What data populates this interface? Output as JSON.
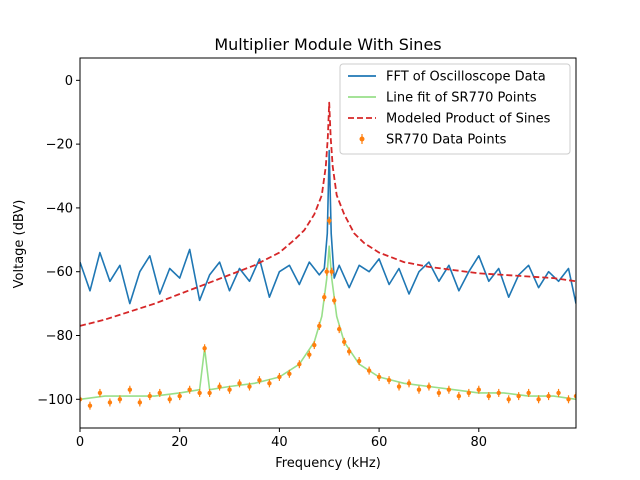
{
  "chart_data": {
    "type": "line",
    "title": "Multiplier Module With Sines",
    "xlabel": "Frequency (kHz)",
    "ylabel": "Voltage (dBV)",
    "xlim": [
      0,
      99.5
    ],
    "ylim": [
      -109,
      7
    ],
    "x_ticks": [
      0,
      20,
      40,
      60,
      80
    ],
    "y_ticks": [
      0,
      -20,
      -40,
      -60,
      -80,
      -100
    ],
    "x_tick_labels": [
      "0",
      "20",
      "40",
      "60",
      "80"
    ],
    "y_tick_labels": [
      "0",
      "−20",
      "−40",
      "−60",
      "−80",
      "−100"
    ],
    "grid": false,
    "legend_position": "top-right",
    "series": [
      {
        "name": "FFT of Oscilloscope Data",
        "style": "solid",
        "color": "#1f77b4",
        "description": "noisy floor around -60 dBV with spike at 50 kHz",
        "x": [
          0,
          2,
          4,
          6,
          8,
          10,
          12,
          14,
          16,
          18,
          20,
          22,
          24,
          26,
          28,
          30,
          32,
          34,
          36,
          38,
          40,
          42,
          44,
          46,
          48,
          49,
          49.6,
          50,
          50.4,
          51,
          52,
          54,
          56,
          58,
          60,
          62,
          64,
          66,
          68,
          70,
          72,
          74,
          76,
          78,
          80,
          82,
          84,
          86,
          88,
          90,
          92,
          94,
          96,
          98,
          99.5
        ],
        "y": [
          -57,
          -66,
          -54,
          -63,
          -58,
          -70,
          -60,
          -55,
          -67,
          -59,
          -62,
          -53,
          -69,
          -61,
          -57,
          -66,
          -59,
          -63,
          -56,
          -68,
          -60,
          -58,
          -64,
          -57,
          -61,
          -59,
          -48,
          -22,
          -48,
          -62,
          -58,
          -65,
          -58,
          -60,
          -56,
          -64,
          -59,
          -67,
          -60,
          -57,
          -63,
          -58,
          -66,
          -60,
          -55,
          -63,
          -59,
          -68,
          -61,
          -58,
          -65,
          -60,
          -63,
          -59,
          -70
        ]
      },
      {
        "name": "Line fit of SR770 Points",
        "style": "solid",
        "color": "#98df8a",
        "x": [
          0,
          5,
          10,
          15,
          20,
          24,
          25,
          26,
          30,
          35,
          40,
          44,
          47,
          48.5,
          49.5,
          50,
          50.5,
          51.5,
          53,
          56,
          60,
          65,
          70,
          75,
          80,
          85,
          90,
          95,
          99.5
        ],
        "y": [
          -100,
          -99,
          -99,
          -99,
          -98,
          -97,
          -84,
          -97,
          -96,
          -95,
          -93,
          -89,
          -82,
          -74,
          -62,
          -52,
          -62,
          -74,
          -82,
          -89,
          -93,
          -95,
          -96,
          -97,
          -98,
          -98,
          -99,
          -99,
          -100
        ]
      },
      {
        "name": "Modeled Product of Sines",
        "style": "dashed",
        "color": "#d62728",
        "x": [
          0,
          5,
          10,
          15,
          20,
          25,
          30,
          35,
          40,
          43,
          45,
          47,
          48.5,
          49.3,
          49.7,
          50,
          50.3,
          50.7,
          51.5,
          53,
          55,
          57,
          60,
          65,
          70,
          75,
          80,
          85,
          90,
          95,
          99.5
        ],
        "y": [
          -77,
          -75,
          -72.5,
          -70,
          -67,
          -64,
          -61,
          -58,
          -54,
          -50,
          -47,
          -42,
          -36,
          -27,
          -18,
          -7,
          -18,
          -27,
          -36,
          -42,
          -48,
          -51,
          -54,
          -57,
          -58.5,
          -59.5,
          -60.5,
          -61,
          -61.5,
          -62,
          -63
        ]
      },
      {
        "name": "SR770 Data Points",
        "style": "errorbar-points",
        "color": "#ff7f0e",
        "x": [
          0,
          2,
          4,
          6,
          8,
          10,
          12,
          14,
          16,
          18,
          20,
          22,
          24,
          25,
          26,
          28,
          30,
          32,
          34,
          36,
          38,
          40,
          42,
          44,
          46,
          47,
          48,
          49,
          49.5,
          50,
          50.5,
          51,
          52,
          53,
          54,
          56,
          58,
          60,
          62,
          64,
          66,
          68,
          70,
          72,
          74,
          76,
          78,
          80,
          82,
          84,
          86,
          88,
          90,
          92,
          94,
          96,
          98,
          99.5
        ],
        "y": [
          -100,
          -102,
          -98,
          -101,
          -100,
          -97,
          -101,
          -99,
          -98,
          -100,
          -99,
          -97,
          -98,
          -84,
          -98,
          -96,
          -97,
          -95,
          -96,
          -94,
          -95,
          -93,
          -92,
          -89,
          -86,
          -83,
          -77,
          -68,
          -60,
          -44,
          -60,
          -69,
          -78,
          -82,
          -85,
          -88,
          -91,
          -93,
          -94,
          -96,
          -95,
          -97,
          -96,
          -98,
          -97,
          -99,
          -98,
          -97,
          -99,
          -98,
          -100,
          -99,
          -98,
          -100,
          -99,
          -98,
          -100,
          -99
        ]
      }
    ]
  }
}
